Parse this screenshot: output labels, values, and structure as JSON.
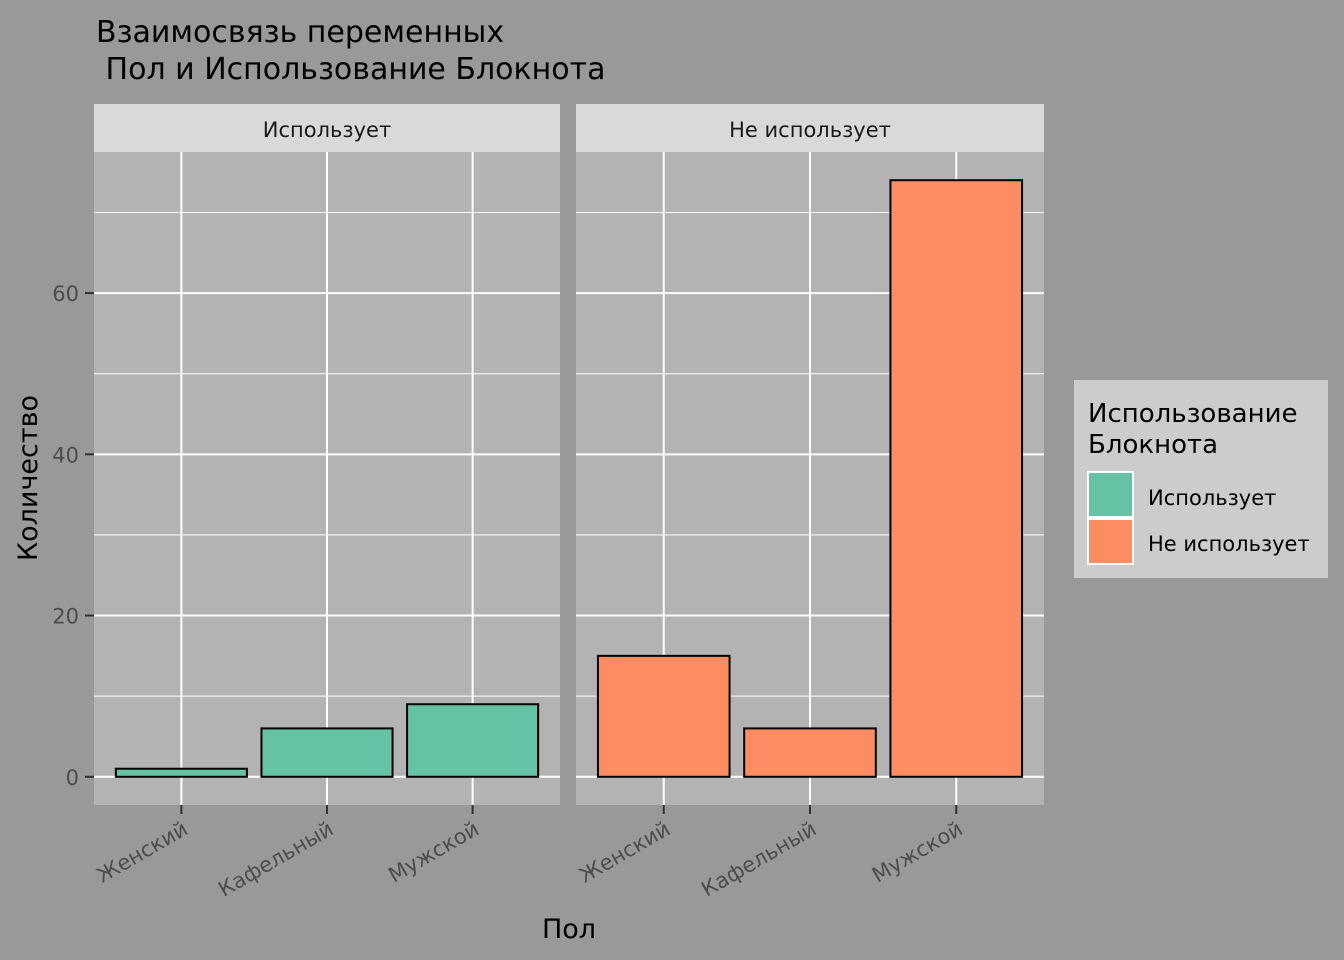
{
  "chart_data": {
    "type": "bar",
    "title_lines": [
      "Взаимосвязь переменных",
      " Пол и Использование Блокнота"
    ],
    "xlabel": "Пол",
    "ylabel": "Количество",
    "categories": [
      "Женский",
      "Кафельный",
      "Мужской"
    ],
    "y_ticks": [
      0,
      20,
      40,
      60
    ],
    "ylim": [
      -3.5,
      77.5
    ],
    "grid": true,
    "facets": [
      {
        "label": "Использует",
        "values": [
          1,
          6,
          9
        ],
        "color": "#66c2a5"
      },
      {
        "label": "Не использует",
        "values": [
          15,
          6,
          74
        ],
        "color": "#fc8d62"
      }
    ],
    "legend": {
      "title_lines": [
        "Использование",
        "Блокнота"
      ],
      "position": "right",
      "entries": [
        {
          "label": "Использует",
          "color": "#66c2a5"
        },
        {
          "label": "Не использует",
          "color": "#fc8d62"
        }
      ]
    },
    "colors": {
      "background": "#999999",
      "panel": "#b3b3b3",
      "strip": "#d9d9d9",
      "legend_bg": "#cccccc",
      "grid": "#ffffff",
      "bar_outline": "#000000"
    }
  }
}
